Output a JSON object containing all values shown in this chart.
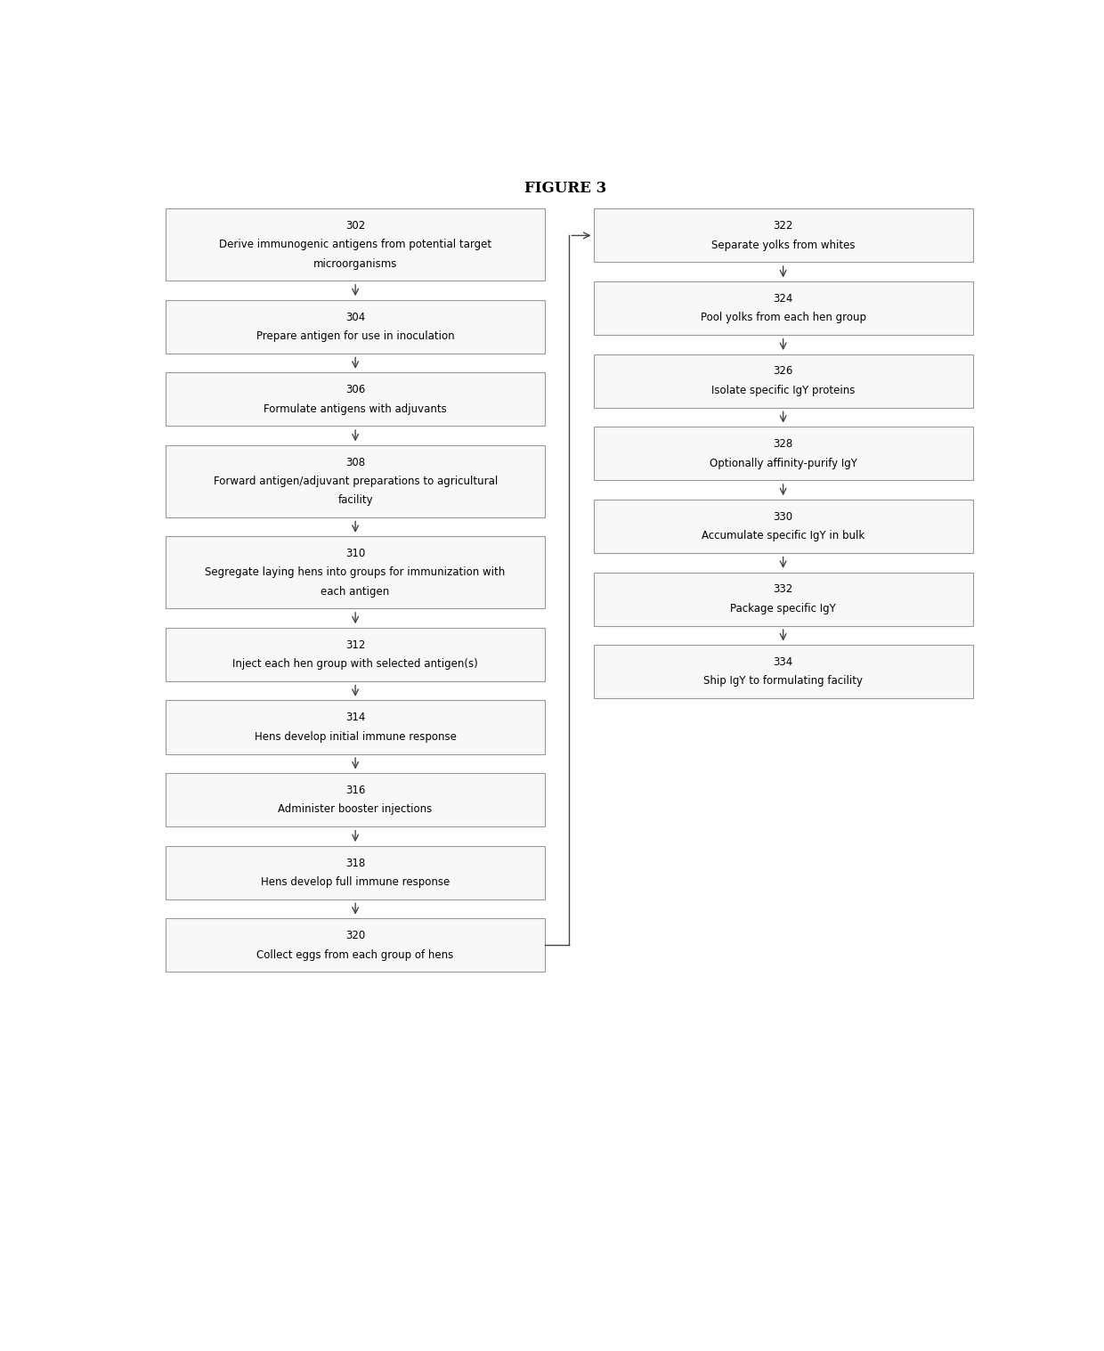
{
  "title": "FIGURE 3",
  "title_fontsize": 12,
  "background_color": "#ffffff",
  "box_edge_color": "#999999",
  "box_fill_color": "#f8f8f8",
  "text_color": "#000000",
  "arrow_color": "#444444",
  "font_size": 8.5,
  "left_boxes": [
    {
      "id": "302",
      "lines": [
        "302",
        "Derive immunogenic antigens from potential target",
        "microorganisms"
      ],
      "nlines": 3
    },
    {
      "id": "304",
      "lines": [
        "304",
        "Prepare antigen for use in inoculation"
      ],
      "nlines": 2
    },
    {
      "id": "306",
      "lines": [
        "306",
        "Formulate antigens with adjuvants"
      ],
      "nlines": 2
    },
    {
      "id": "308",
      "lines": [
        "308",
        "Forward antigen/adjuvant preparations to agricultural",
        "facility"
      ],
      "nlines": 3
    },
    {
      "id": "310",
      "lines": [
        "310",
        "Segregate laying hens into groups for immunization with",
        "each antigen"
      ],
      "nlines": 3
    },
    {
      "id": "312",
      "lines": [
        "312",
        "Inject each hen group with selected antigen(s)"
      ],
      "nlines": 2
    },
    {
      "id": "314",
      "lines": [
        "314",
        "Hens develop initial immune response"
      ],
      "nlines": 2
    },
    {
      "id": "316",
      "lines": [
        "316",
        "Administer booster injections"
      ],
      "nlines": 2
    },
    {
      "id": "318",
      "lines": [
        "318",
        "Hens develop full immune response"
      ],
      "nlines": 2
    },
    {
      "id": "320",
      "lines": [
        "320",
        "Collect eggs from each group of hens"
      ],
      "nlines": 2
    }
  ],
  "right_boxes": [
    {
      "id": "322",
      "lines": [
        "322",
        "Separate yolks from whites"
      ],
      "nlines": 2
    },
    {
      "id": "324",
      "lines": [
        "324",
        "Pool yolks from each hen group"
      ],
      "nlines": 2
    },
    {
      "id": "326",
      "lines": [
        "326",
        "Isolate specific IgY proteins"
      ],
      "nlines": 2
    },
    {
      "id": "328",
      "lines": [
        "328",
        "Optionally affinity-purify IgY"
      ],
      "nlines": 2
    },
    {
      "id": "330",
      "lines": [
        "330",
        "Accumulate specific IgY in bulk"
      ],
      "nlines": 2
    },
    {
      "id": "332",
      "lines": [
        "332",
        "Package specific IgY"
      ],
      "nlines": 2
    },
    {
      "id": "334",
      "lines": [
        "334",
        "Ship IgY to formulating facility"
      ],
      "nlines": 2
    }
  ]
}
